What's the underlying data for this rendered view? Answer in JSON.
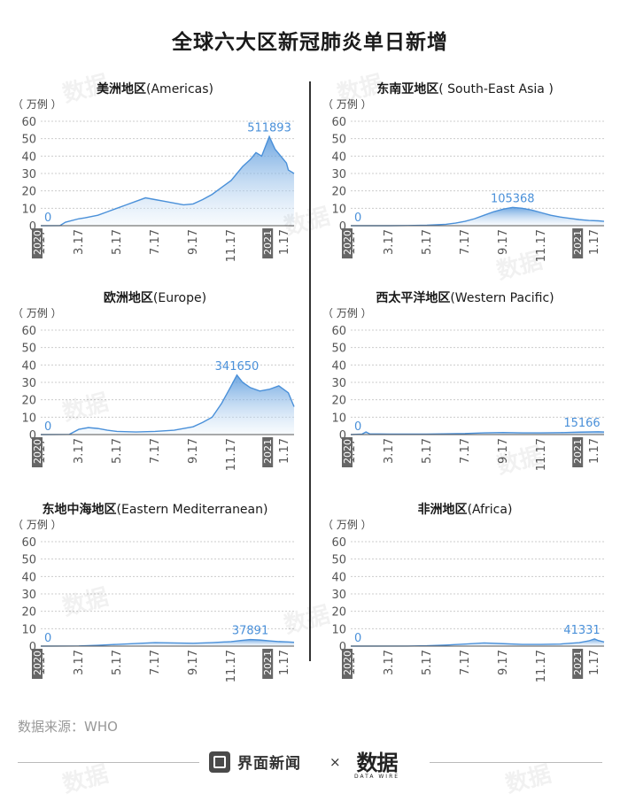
{
  "title": "全球六大区新冠肺炎单日新增",
  "source": "数据来源：WHO",
  "footer": {
    "brand_left": "界面新闻",
    "times": "×",
    "brand_right": "数据",
    "brand_right_sub": "DATA WIRE"
  },
  "watermark": "数据",
  "colors": {
    "line": "#4a90d9",
    "fill_top": "#4a90d9",
    "fill_bottom": "#eaf3fb",
    "grid": "#cccccc",
    "year_label_bg": "#666666"
  },
  "chart_data": [
    {
      "type": "area",
      "title_cn": "美洲地区",
      "title_en": "(Americas)",
      "unit_label": "（ 万例 ）",
      "y_ticks": [
        0,
        10,
        20,
        30,
        40,
        50,
        60
      ],
      "ylim": [
        0,
        60
      ],
      "x_ticks": [
        "1.17",
        "3.17",
        "5.17",
        "7.17",
        "9.17",
        "11.17",
        "1.17"
      ],
      "year_labels": [
        "2020",
        "2021"
      ],
      "x": [
        0,
        1,
        1.3,
        2,
        2.3,
        3,
        3.5,
        4,
        4.5,
        5,
        5.5,
        6,
        6.5,
        7,
        7.5,
        8,
        8.5,
        9,
        9.5,
        10,
        10.3,
        10.6,
        11,
        11.3,
        11.6,
        12,
        12.3,
        12.6,
        12.9,
        13,
        13.3
      ],
      "y": [
        0,
        0.01,
        2,
        4,
        4.5,
        6,
        8,
        10,
        12,
        14,
        16,
        15,
        14,
        13,
        12,
        12.5,
        15,
        18,
        22,
        26,
        30,
        34,
        38,
        42,
        40,
        51.19,
        44,
        40,
        36,
        32,
        30
      ],
      "peak_value": 511893,
      "start_value": 0
    },
    {
      "type": "area",
      "title_cn": "东南亚地区",
      "title_en": "( South-East Asia )",
      "unit_label": "（ 万例 ）",
      "y_ticks": [
        0,
        10,
        20,
        30,
        40,
        50,
        60
      ],
      "ylim": [
        0,
        60
      ],
      "x_ticks": [
        "1.17",
        "3.17",
        "5.17",
        "7.17",
        "9.17",
        "11.17",
        "1.17"
      ],
      "year_labels": [
        "2020",
        "2021"
      ],
      "x": [
        0,
        2,
        3,
        4,
        5,
        5.5,
        6,
        6.5,
        7,
        7.5,
        8,
        8.5,
        9,
        9.5,
        10,
        10.5,
        11,
        11.5,
        12,
        12.5,
        13,
        13.3
      ],
      "y": [
        0,
        0,
        0.1,
        0.3,
        0.8,
        1.5,
        2.5,
        4,
        6,
        8,
        9.5,
        10.54,
        10,
        9,
        7.5,
        6,
        5,
        4.2,
        3.5,
        3,
        2.8,
        2.5
      ],
      "peak_value": 105368,
      "start_value": 0
    },
    {
      "type": "area",
      "title_cn": "欧洲地区",
      "title_en": "(Europe)",
      "unit_label": "（ 万例 ）",
      "y_ticks": [
        0,
        10,
        20,
        30,
        40,
        50,
        60
      ],
      "ylim": [
        0,
        60
      ],
      "x_ticks": [
        "1.17",
        "3.17",
        "5.17",
        "7.17",
        "9.17",
        "11.17",
        "1.17"
      ],
      "year_labels": [
        "2020",
        "2021"
      ],
      "x": [
        0,
        1.5,
        2,
        2.5,
        3,
        3.5,
        4,
        5,
        6,
        7,
        8,
        8.5,
        9,
        9.5,
        10,
        10.3,
        10.6,
        11,
        11.5,
        12,
        12.5,
        13,
        13.3
      ],
      "y": [
        0,
        0.1,
        3,
        4,
        3.5,
        2.5,
        1.8,
        1.5,
        1.8,
        2.5,
        4.5,
        7,
        10,
        18,
        28,
        34.17,
        30,
        27,
        25,
        26,
        28,
        24,
        16
      ],
      "peak_value": 341650,
      "start_value": 0
    },
    {
      "type": "area",
      "title_cn": "西太平洋地区",
      "title_en": "(Western Pacific)",
      "unit_label": "（ 万例 ）",
      "y_ticks": [
        0,
        10,
        20,
        30,
        40,
        50,
        60
      ],
      "ylim": [
        0,
        60
      ],
      "x_ticks": [
        "1.17",
        "3.17",
        "5.17",
        "7.17",
        "9.17",
        "11.17",
        "1.17"
      ],
      "year_labels": [
        "2020",
        "2021"
      ],
      "x": [
        0,
        0.6,
        0.8,
        1,
        2,
        4,
        6,
        7,
        8,
        9,
        10,
        11,
        12,
        13,
        13.3
      ],
      "y": [
        0,
        0.3,
        1.52,
        0.4,
        0.3,
        0.3,
        0.6,
        1,
        1.2,
        1,
        1,
        1.1,
        1.4,
        1.6,
        1.5
      ],
      "peak_value": 15166,
      "start_value": 0
    },
    {
      "type": "area",
      "title_cn": "东地中海地区",
      "title_en": "(Eastern Mediterranean)",
      "unit_label": "（ 万例 ）",
      "y_ticks": [
        0,
        10,
        20,
        30,
        40,
        50,
        60
      ],
      "ylim": [
        0,
        60
      ],
      "x_ticks": [
        "1.17",
        "3.17",
        "5.17",
        "7.17",
        "9.17",
        "11.17",
        "1.17"
      ],
      "year_labels": [
        "2020",
        "2021"
      ],
      "x": [
        0,
        2,
        3,
        4,
        5,
        6,
        7,
        8,
        9,
        10,
        10.5,
        11,
        11.5,
        12,
        12.5,
        13,
        13.3
      ],
      "y": [
        0,
        0.1,
        0.5,
        1,
        1.5,
        2,
        1.8,
        1.6,
        2,
        2.6,
        3.2,
        3.79,
        3.5,
        3,
        2.6,
        2.4,
        2.2
      ],
      "peak_value": 37891,
      "start_value": 0
    },
    {
      "type": "area",
      "title_cn": "非洲地区",
      "title_en": "(Africa)",
      "unit_label": "（ 万例 ）",
      "y_ticks": [
        0,
        10,
        20,
        30,
        40,
        50,
        60
      ],
      "ylim": [
        0,
        60
      ],
      "x_ticks": [
        "1.17",
        "3.17",
        "5.17",
        "7.17",
        "9.17",
        "11.17",
        "1.17"
      ],
      "year_labels": [
        "2020",
        "2021"
      ],
      "x": [
        0,
        3,
        4,
        5,
        6,
        7,
        8,
        9,
        10,
        11,
        12,
        12.5,
        12.8,
        13,
        13.3
      ],
      "y": [
        0,
        0.05,
        0.2,
        0.6,
        1.2,
        1.8,
        1.4,
        1,
        1,
        1.2,
        2,
        3,
        4.13,
        3.2,
        2.4
      ],
      "peak_value": 41331,
      "start_value": 0
    }
  ]
}
